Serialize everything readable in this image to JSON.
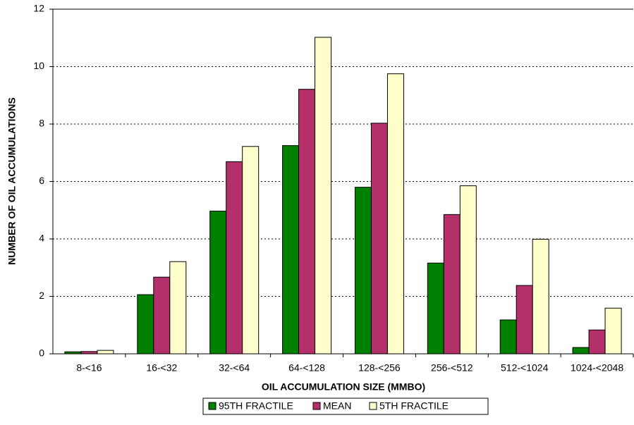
{
  "chart_data": {
    "type": "bar",
    "x_label": "OIL ACCUMULATION SIZE (MMBO)",
    "y_label": "NUMBER OF OIL ACCUMULATIONS",
    "categories": [
      "8-<16",
      "16-<32",
      "32-<64",
      "64-<128",
      "128-<256",
      "256-<512",
      "512-<1024",
      "1024-<2048"
    ],
    "series": [
      {
        "name": "95TH FRACTILE",
        "color": "#008000",
        "values": [
          0.07,
          2.06,
          4.97,
          7.25,
          5.8,
          3.16,
          1.18,
          0.22
        ]
      },
      {
        "name": "MEAN",
        "color": "#b3306a",
        "values": [
          0.08,
          2.67,
          6.69,
          9.21,
          8.03,
          4.85,
          2.38,
          0.83
        ]
      },
      {
        "name": "5TH FRACTILE",
        "color": "#ffffcc",
        "values": [
          0.12,
          3.21,
          7.22,
          11.02,
          9.75,
          5.85,
          3.99,
          1.59
        ]
      }
    ],
    "ylim": [
      0,
      12
    ],
    "yticks": [
      0,
      2,
      4,
      6,
      8,
      10,
      12
    ],
    "grid": true,
    "legend": "bottom"
  }
}
